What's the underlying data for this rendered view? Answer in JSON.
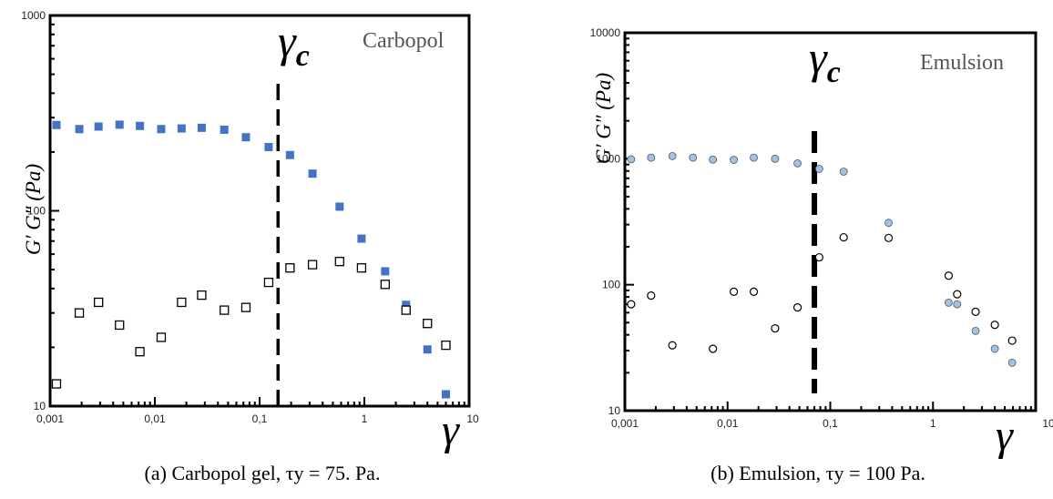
{
  "chart_data": [
    {
      "type": "scatter",
      "xscale": "log",
      "yscale": "log",
      "xlim": [
        0.001,
        10
      ],
      "ylim": [
        10,
        1000
      ],
      "x_ticks": [
        "0,001",
        "0,01",
        "0,1",
        "1",
        "10"
      ],
      "y_ticks": [
        "10",
        "100",
        "1000"
      ],
      "ylabel": "G′ G″ (Pa)",
      "xlabel": "γ",
      "annotation": "Carbopol",
      "critical_label": "γc",
      "critical_strain": 0.15,
      "caption": "(a) Carbopol gel, τy = 75. Pa.",
      "colors": {
        "storage": "#4472c4",
        "loss": "#000000"
      },
      "series": [
        {
          "marker": "filled-square",
          "x": [
            0.00115,
            0.0019,
            0.0029,
            0.0046,
            0.0072,
            0.0115,
            0.018,
            0.028,
            0.046,
            0.074,
            0.122,
            0.195,
            0.32,
            0.58,
            0.94,
            1.58,
            2.5,
            4.0,
            6.0
          ],
          "y": [
            275,
            262,
            270,
            276,
            272,
            262,
            264,
            266,
            260,
            238,
            212,
            193,
            155,
            105,
            72,
            49,
            33,
            19.5,
            11.5
          ]
        },
        {
          "marker": "open-square",
          "x": [
            0.00115,
            0.0019,
            0.0029,
            0.0046,
            0.0072,
            0.0115,
            0.018,
            0.028,
            0.046,
            0.074,
            0.122,
            0.195,
            0.32,
            0.58,
            0.94,
            1.58,
            2.5,
            4.0,
            6.0
          ],
          "y": [
            13,
            30,
            34,
            26,
            19,
            22.5,
            34,
            37,
            31,
            32,
            43,
            51,
            53,
            55,
            51,
            42,
            31,
            26.5,
            20.5
          ]
        }
      ]
    },
    {
      "type": "scatter",
      "xscale": "log",
      "yscale": "log",
      "xlim": [
        0.001,
        10
      ],
      "ylim": [
        10,
        10000
      ],
      "x_ticks": [
        "0,001",
        "0,01",
        "0,1",
        "1",
        "10"
      ],
      "y_ticks": [
        "10",
        "100",
        "1000",
        "10000"
      ],
      "ylabel": "G′ G″ (Pa)",
      "xlabel": "γ",
      "annotation": "Emulsion",
      "critical_label": "γc",
      "critical_strain": 0.07,
      "caption": "(b) Emulsion, τy = 100 Pa.",
      "colors": {
        "storage": "#9dc3e6",
        "loss": "#000000"
      },
      "series": [
        {
          "marker": "filled-circle",
          "x": [
            0.00115,
            0.0018,
            0.0029,
            0.0046,
            0.0072,
            0.0115,
            0.018,
            0.029,
            0.048,
            0.078,
            0.135,
            0.37,
            1.42,
            1.72,
            2.6,
            4.0,
            5.9
          ],
          "y": [
            990,
            1020,
            1050,
            1020,
            985,
            980,
            1020,
            1000,
            920,
            830,
            790,
            310,
            72,
            70,
            43,
            31,
            24
          ]
        },
        {
          "marker": "open-circle",
          "x": [
            0.00115,
            0.0018,
            0.0029,
            0.0072,
            0.0115,
            0.018,
            0.029,
            0.048,
            0.078,
            0.135,
            0.37,
            1.42,
            1.72,
            2.6,
            4.0,
            5.9
          ],
          "y": [
            70,
            82,
            33,
            31,
            88,
            88,
            45,
            66,
            165,
            238,
            235,
            118,
            84,
            61,
            48,
            36
          ]
        }
      ]
    }
  ]
}
